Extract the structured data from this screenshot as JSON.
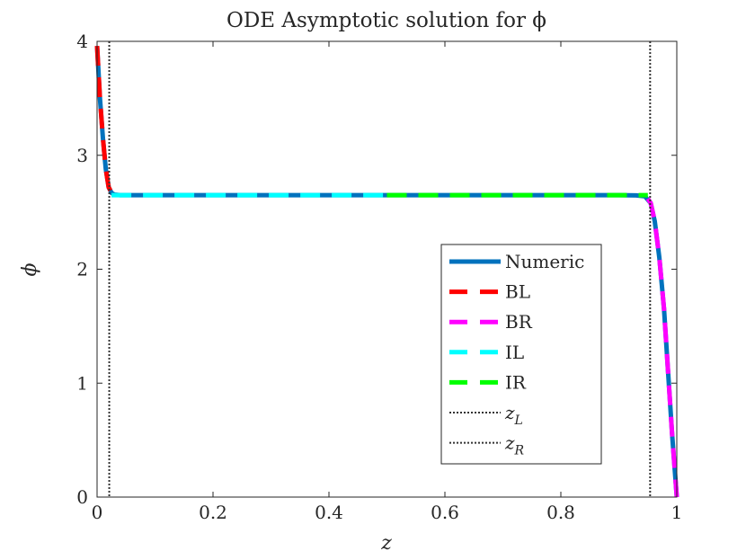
{
  "chart_data": {
    "type": "line",
    "title": "ODE Asymptotic solution for ϕ",
    "xlabel": "z",
    "ylabel": "ϕ",
    "xlim": [
      0,
      1
    ],
    "ylim": [
      0,
      4
    ],
    "xticks": [
      0,
      0.2,
      0.4,
      0.6,
      0.8,
      1
    ],
    "xtick_labels": [
      "0",
      "0.2",
      "0.4",
      "0.6",
      "0.8",
      "1"
    ],
    "yticks": [
      0,
      1,
      2,
      3,
      4
    ],
    "ytick_labels": [
      "0",
      "1",
      "2",
      "3",
      "4"
    ],
    "grid": false,
    "legend_position": "right-center",
    "series": [
      {
        "name": "Numeric",
        "style": "solid",
        "color": "#0072BD",
        "x": [
          0,
          0.005,
          0.01,
          0.015,
          0.02,
          0.025,
          0.03,
          0.04,
          0.06,
          0.1,
          0.3,
          0.5,
          0.7,
          0.9,
          0.93,
          0.945,
          0.955,
          0.962,
          0.97,
          0.978,
          0.985,
          0.992,
          1.0
        ],
        "y": [
          3.96,
          3.5,
          3.15,
          2.88,
          2.72,
          2.67,
          2.655,
          2.65,
          2.65,
          2.65,
          2.65,
          2.65,
          2.65,
          2.65,
          2.648,
          2.64,
          2.58,
          2.42,
          2.1,
          1.65,
          1.1,
          0.55,
          0.0
        ]
      },
      {
        "name": "BL",
        "style": "dashed",
        "color": "#FF0000",
        "x": [
          0,
          0.005,
          0.01,
          0.015,
          0.02,
          0.025
        ],
        "y": [
          3.96,
          3.5,
          3.15,
          2.88,
          2.72,
          2.67
        ]
      },
      {
        "name": "BR",
        "style": "dashed",
        "color": "#FF00FF",
        "x": [
          0.95,
          0.955,
          0.962,
          0.97,
          0.978,
          0.985,
          0.992,
          1.0
        ],
        "y": [
          2.62,
          2.58,
          2.42,
          2.1,
          1.65,
          1.1,
          0.55,
          0.0
        ]
      },
      {
        "name": "IL",
        "style": "dashed",
        "color": "#00FFFF",
        "x": [
          0.025,
          0.5
        ],
        "y": [
          2.65,
          2.65
        ]
      },
      {
        "name": "IR",
        "style": "dashed",
        "color": "#00FF00",
        "x": [
          0.5,
          0.95
        ],
        "y": [
          2.65,
          2.65
        ]
      }
    ],
    "vlines": [
      {
        "name": "z_L",
        "label": "z",
        "subscript": "L",
        "x": 0.021,
        "style": "dotted",
        "color": "#333333"
      },
      {
        "name": "z_R",
        "label": "z",
        "subscript": "R",
        "x": 0.954,
        "style": "dotted",
        "color": "#333333"
      }
    ]
  },
  "legend": {
    "items": [
      {
        "label": "Numeric",
        "sub": "",
        "color": "#0072BD",
        "style": "solid"
      },
      {
        "label": "BL",
        "sub": "",
        "color": "#FF0000",
        "style": "dashed"
      },
      {
        "label": "BR",
        "sub": "",
        "color": "#FF00FF",
        "style": "dashed"
      },
      {
        "label": "IL",
        "sub": "",
        "color": "#00FFFF",
        "style": "dashed"
      },
      {
        "label": "IR",
        "sub": "",
        "color": "#00FF00",
        "style": "dashed"
      },
      {
        "label": "z",
        "sub": "L",
        "color": "#333333",
        "style": "dotted"
      },
      {
        "label": "z",
        "sub": "R",
        "color": "#333333",
        "style": "dotted"
      }
    ]
  }
}
